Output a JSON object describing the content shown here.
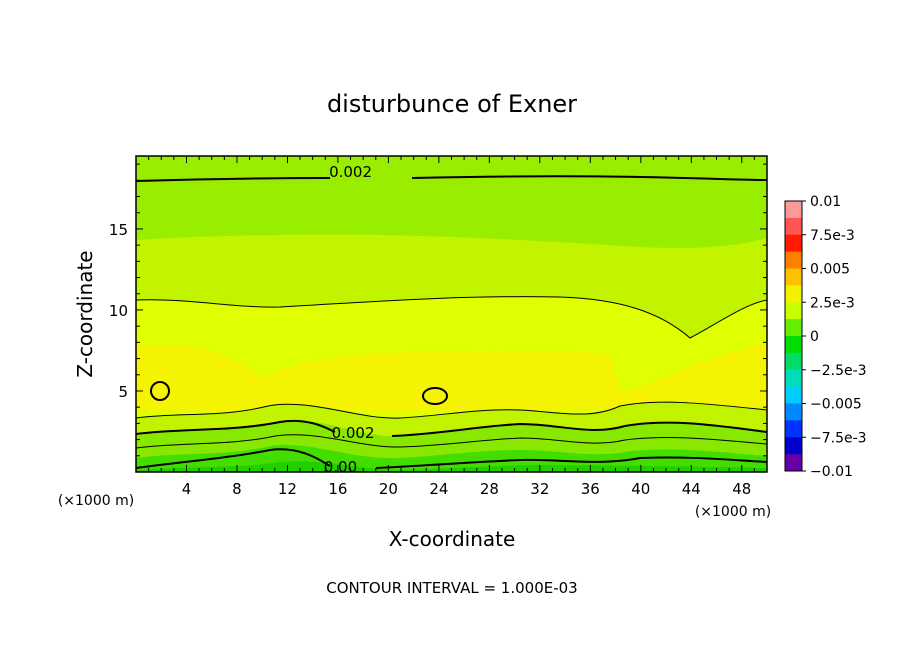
{
  "chart_data": {
    "type": "contour",
    "title": "disturbunce of Exner",
    "xlabel": "X-coordinate",
    "ylabel": "Z-coordinate",
    "x_unit": "(×1000 m)",
    "y_unit": "(×1000 m)",
    "xlim": [
      0,
      50
    ],
    "ylim": [
      0,
      19.5
    ],
    "x_ticks": [
      4,
      8,
      12,
      16,
      20,
      24,
      28,
      32,
      36,
      40,
      44,
      48
    ],
    "y_ticks": [
      5,
      10,
      15
    ],
    "footer": "CONTOUR INTERVAL = 1.000E-03",
    "colorbar": {
      "labels": [
        "0.01",
        "7.5e-3",
        "0.005",
        "2.5e-3",
        "0",
        "−2.5e-3",
        "−0.005",
        "−7.5e-3",
        "−0.01"
      ],
      "colors": [
        "#ff9999",
        "#ff5555",
        "#ff1a00",
        "#ff8000",
        "#ffc000",
        "#f5f000",
        "#c8ff00",
        "#66ee00",
        "#00dd00",
        "#00dd66",
        "#00ddbb",
        "#00ccff",
        "#0088ff",
        "#0033ff",
        "#0000cc",
        "#6600aa"
      ]
    },
    "contour_labels": [
      {
        "text": "0.002",
        "x": 17.0,
        "z": 18.5
      },
      {
        "text": "0.002",
        "x": 17.2,
        "z": 2.4
      },
      {
        "text": "0.00",
        "x": 16.2,
        "z": 0.3
      }
    ]
  }
}
